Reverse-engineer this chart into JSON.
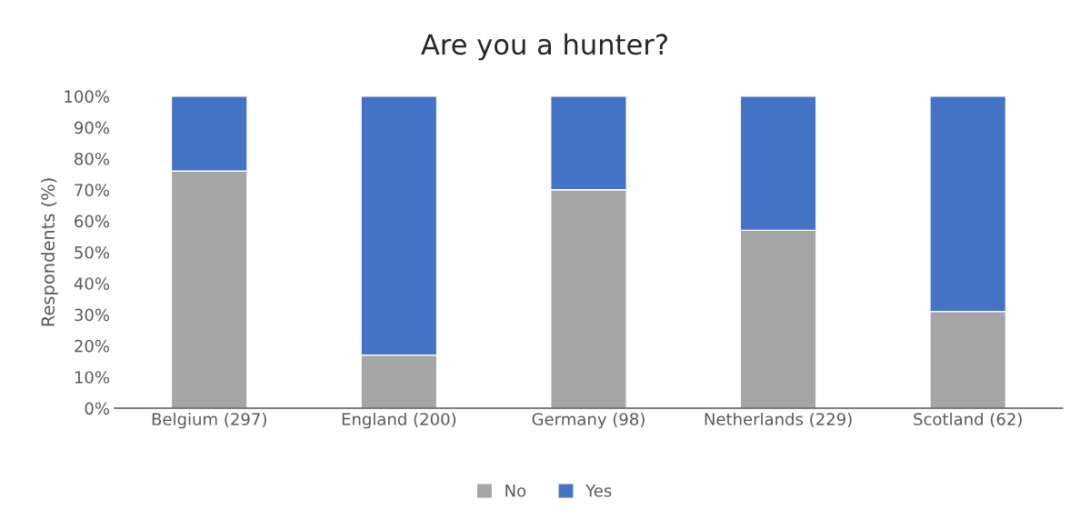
{
  "chart_data": {
    "type": "bar",
    "title": "Are you a hunter?",
    "ylabel": "Respondents (%)",
    "categories": [
      "Belgium (297)",
      "England (200)",
      "Germany (98)",
      "Netherlands (229)",
      "Scotland (62)"
    ],
    "stacked": true,
    "series": [
      {
        "name": "No",
        "color": "#a5a5a5",
        "values": [
          76,
          17,
          70,
          57,
          31
        ]
      },
      {
        "name": "Yes",
        "color": "#4472c4",
        "values": [
          24,
          83,
          30,
          43,
          69
        ]
      }
    ],
    "ylim": [
      0,
      100
    ],
    "yticks": [
      {
        "value": 0,
        "label": "0%"
      },
      {
        "value": 10,
        "label": "10%"
      },
      {
        "value": 20,
        "label": "20%"
      },
      {
        "value": 30,
        "label": "30%"
      },
      {
        "value": 40,
        "label": "40%"
      },
      {
        "value": 50,
        "label": "50%"
      },
      {
        "value": 60,
        "label": "60%"
      },
      {
        "value": 70,
        "label": "70%"
      },
      {
        "value": 80,
        "label": "80%"
      },
      {
        "value": 90,
        "label": "90%"
      },
      {
        "value": 100,
        "label": "100%"
      }
    ],
    "grid": false,
    "legend": "bottom"
  }
}
